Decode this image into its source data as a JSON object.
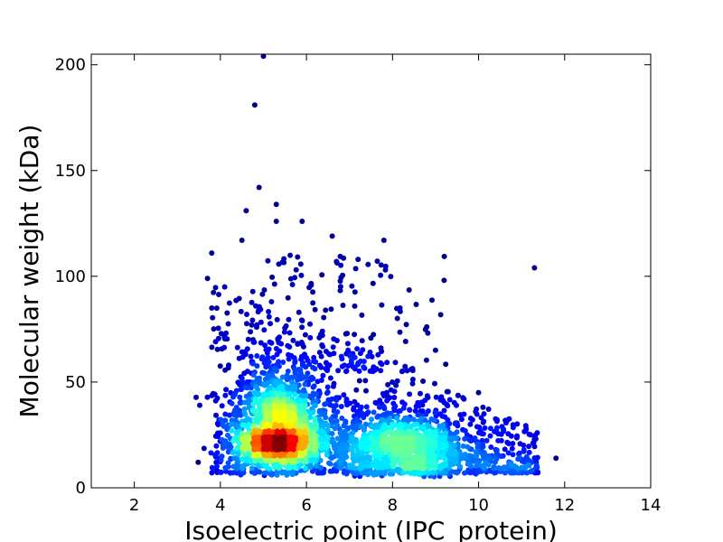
{
  "chart_data": {
    "type": "scatter",
    "title": "",
    "xlabel": "Isoelectric point (IPC_protein)",
    "ylabel": "Molecular weight (kDa)",
    "xlim": [
      1,
      14
    ],
    "ylim": [
      0,
      205
    ],
    "x_ticks": [
      2,
      4,
      6,
      8,
      10,
      12,
      14
    ],
    "y_ticks": [
      0,
      50,
      100,
      150,
      200
    ],
    "grid": false,
    "legend": "none",
    "color_encoding": "point density (jet colormap: blue = low, red = high)",
    "colormap": [
      "#00007f",
      "#0000ff",
      "#0080ff",
      "#00ffff",
      "#80ff80",
      "#ffff00",
      "#ff8000",
      "#ff0000",
      "#7f0000"
    ],
    "density_peaks": [
      {
        "x": 5.3,
        "y": 25,
        "level": "highest"
      },
      {
        "x": 8.2,
        "y": 19,
        "level": "secondary"
      }
    ],
    "outliers": [
      {
        "x": 5.0,
        "y": 204
      },
      {
        "x": 4.8,
        "y": 181
      },
      {
        "x": 4.9,
        "y": 142
      },
      {
        "x": 5.3,
        "y": 134
      },
      {
        "x": 4.6,
        "y": 131
      },
      {
        "x": 5.3,
        "y": 126
      },
      {
        "x": 5.9,
        "y": 126
      },
      {
        "x": 6.6,
        "y": 119
      },
      {
        "x": 7.8,
        "y": 117
      },
      {
        "x": 4.5,
        "y": 117
      },
      {
        "x": 3.8,
        "y": 111
      },
      {
        "x": 7.2,
        "y": 108
      },
      {
        "x": 11.3,
        "y": 104
      },
      {
        "x": 3.7,
        "y": 99
      },
      {
        "x": 4.1,
        "y": 95
      },
      {
        "x": 3.8,
        "y": 85
      },
      {
        "x": 9.0,
        "y": 65
      },
      {
        "x": 10.0,
        "y": 45
      },
      {
        "x": 11.3,
        "y": 23
      },
      {
        "x": 11.8,
        "y": 14
      }
    ]
  }
}
